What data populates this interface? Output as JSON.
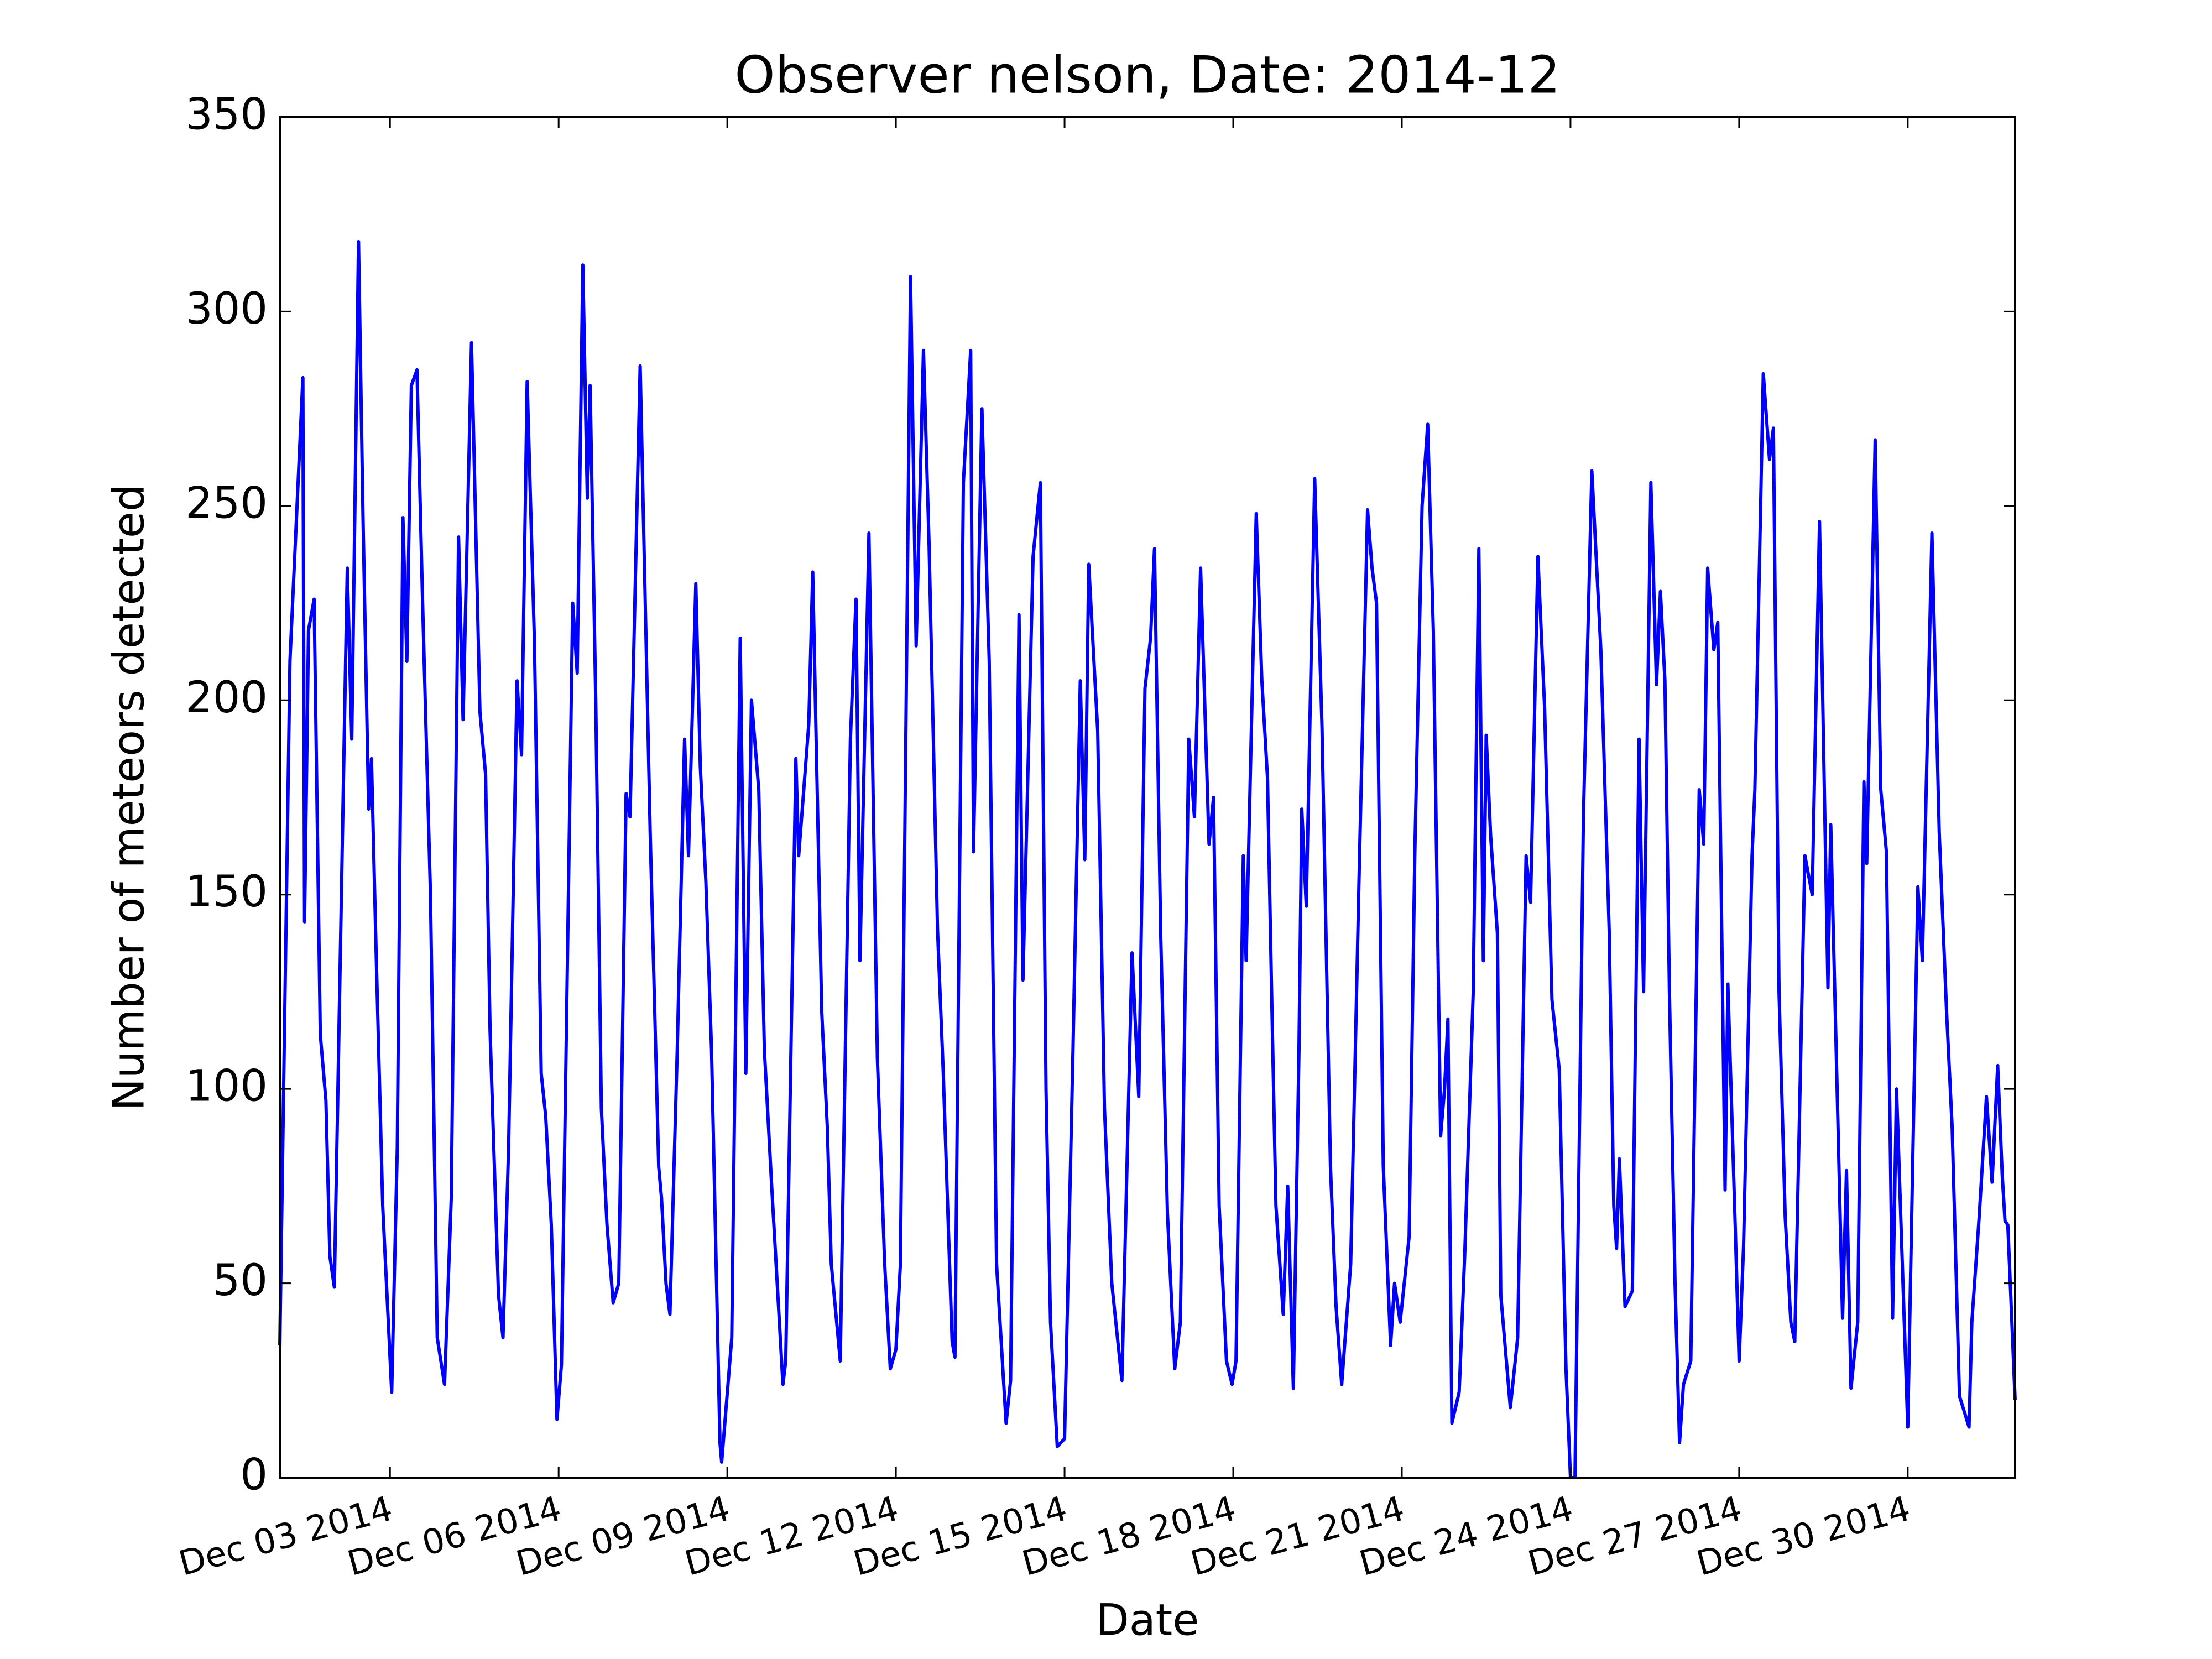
{
  "chart_data": {
    "type": "line",
    "title": "Observer nelson, Date: 2014-12",
    "xlabel": "Date",
    "ylabel": "Number of meteors detected",
    "color": "#0000ff",
    "xlim": [
      1.04,
      31.91
    ],
    "ylim": [
      0,
      350
    ],
    "yticks": [
      0,
      50,
      100,
      150,
      200,
      250,
      300,
      350
    ],
    "xticks": [
      {
        "value": 3,
        "label": "Dec 03 2014"
      },
      {
        "value": 6,
        "label": "Dec 06 2014"
      },
      {
        "value": 9,
        "label": "Dec 09 2014"
      },
      {
        "value": 12,
        "label": "Dec 12 2014"
      },
      {
        "value": 15,
        "label": "Dec 15 2014"
      },
      {
        "value": 18,
        "label": "Dec 18 2014"
      },
      {
        "value": 21,
        "label": "Dec 21 2014"
      },
      {
        "value": 24,
        "label": "Dec 24 2014"
      },
      {
        "value": 27,
        "label": "Dec 27 2014"
      },
      {
        "value": 30,
        "label": "Dec 30 2014"
      }
    ],
    "grid": false,
    "x": [
      1.04,
      1.22,
      1.45,
      1.48,
      1.55,
      1.65,
      1.76,
      1.86,
      1.93,
      2.01,
      2.24,
      2.32,
      2.44,
      2.52,
      2.62,
      2.67,
      2.75,
      2.87,
      3.03,
      3.13,
      3.23,
      3.3,
      3.38,
      3.48,
      3.58,
      3.72,
      3.84,
      3.97,
      4.09,
      4.22,
      4.3,
      4.45,
      4.6,
      4.7,
      4.78,
      4.93,
      5.01,
      5.11,
      5.26,
      5.34,
      5.44,
      5.57,
      5.69,
      5.77,
      5.87,
      5.97,
      6.05,
      6.25,
      6.33,
      6.43,
      6.51,
      6.56,
      6.66,
      6.76,
      6.86,
      6.97,
      7.07,
      7.2,
      7.27,
      7.45,
      7.63,
      7.78,
      7.83,
      7.91,
      7.98,
      8.11,
      8.24,
      8.31,
      8.44,
      8.52,
      8.62,
      8.72,
      8.87,
      8.9,
      9.08,
      9.23,
      9.33,
      9.43,
      9.56,
      9.66,
      9.79,
      9.99,
      10.04,
      10.22,
      10.27,
      10.35,
      10.45,
      10.52,
      10.68,
      10.78,
      10.85,
      11.01,
      11.19,
      11.29,
      11.36,
      11.52,
      11.67,
      11.8,
      11.9,
      12.0,
      12.08,
      12.26,
      12.36,
      12.49,
      12.59,
      12.74,
      12.84,
      13.0,
      13.05,
      13.2,
      13.33,
      13.38,
      13.53,
      13.66,
      13.79,
      13.96,
      14.04,
      14.19,
      14.26,
      14.44,
      14.57,
      14.67,
      14.75,
      14.87,
      15.0,
      15.15,
      15.28,
      15.36,
      15.43,
      15.59,
      15.71,
      15.84,
      16.02,
      16.2,
      16.32,
      16.43,
      16.53,
      16.6,
      16.71,
      16.83,
      16.96,
      17.06,
      17.21,
      17.31,
      17.42,
      17.57,
      17.65,
      17.75,
      17.88,
      17.98,
      18.05,
      18.18,
      18.23,
      18.41,
      18.51,
      18.61,
      18.69,
      18.76,
      18.89,
      18.97,
      19.07,
      19.17,
      19.22,
      19.3,
      19.45,
      19.58,
      19.73,
      19.83,
      19.93,
      20.09,
      20.24,
      20.39,
      20.47,
      20.55,
      20.67,
      20.8,
      20.87,
      20.97,
      21.13,
      21.23,
      21.36,
      21.46,
      21.56,
      21.69,
      21.76,
      21.82,
      21.89,
      22.02,
      22.12,
      22.27,
      22.37,
      22.45,
      22.5,
      22.58,
      22.7,
      22.76,
      22.93,
      23.06,
      23.21,
      23.29,
      23.42,
      23.54,
      23.67,
      23.8,
      23.92,
      24.0,
      24.08,
      24.23,
      24.38,
      24.54,
      24.69,
      24.77,
      24.82,
      24.87,
      24.97,
      25.1,
      25.22,
      25.3,
      25.43,
      25.53,
      25.6,
      25.68,
      25.76,
      25.86,
      25.94,
      26.01,
      26.14,
      26.29,
      26.37,
      26.44,
      26.55,
      26.62,
      26.75,
      26.8,
      26.93,
      27.0,
      27.08,
      27.23,
      27.28,
      27.43,
      27.54,
      27.61,
      27.71,
      27.82,
      27.92,
      27.99,
      28.17,
      28.3,
      28.43,
      28.58,
      28.63,
      28.76,
      28.84,
      28.91,
      28.99,
      29.11,
      29.22,
      29.27,
      29.42,
      29.52,
      29.62,
      29.73,
      29.8,
      30.0,
      30.18,
      30.26,
      30.43,
      30.56,
      30.69,
      30.79,
      30.92,
      31.09,
      31.14,
      31.27,
      31.4,
      31.5,
      31.6,
      31.68,
      31.73,
      31.78,
      31.91
    ],
    "values": [
      34,
      210,
      283,
      143,
      218,
      226,
      114,
      97,
      57,
      49,
      234,
      190,
      318,
      247,
      172,
      185,
      137,
      70,
      22,
      85,
      247,
      210,
      281,
      285,
      225,
      150,
      36,
      24,
      72,
      242,
      195,
      292,
      197,
      181,
      115,
      47,
      36,
      85,
      205,
      186,
      282,
      215,
      104,
      93,
      65,
      15,
      29,
      225,
      207,
      312,
      252,
      281,
      200,
      95,
      65,
      45,
      50,
      176,
      170,
      286,
      165,
      80,
      72,
      50,
      42,
      110,
      190,
      160,
      230,
      183,
      153,
      110,
      9,
      4,
      36,
      216,
      104,
      200,
      177,
      110,
      75,
      24,
      30,
      185,
      160,
      175,
      194,
      233,
      120,
      90,
      55,
      30,
      190,
      226,
      133,
      243,
      108,
      55,
      28,
      33,
      55,
      309,
      214,
      290,
      240,
      141,
      105,
      35,
      31,
      256,
      290,
      161,
      275,
      210,
      55,
      14,
      25,
      222,
      128,
      237,
      256,
      100,
      40,
      8,
      10,
      110,
      205,
      159,
      235,
      192,
      95,
      50,
      25,
      135,
      98,
      203,
      216,
      239,
      140,
      68,
      28,
      40,
      190,
      170,
      234,
      163,
      175,
      70,
      30,
      24,
      30,
      160,
      133,
      248,
      205,
      180,
      120,
      70,
      42,
      75,
      23,
      110,
      172,
      147,
      257,
      193,
      80,
      44,
      24,
      55,
      155,
      249,
      234,
      225,
      80,
      34,
      50,
      40,
      62,
      160,
      250,
      271,
      218,
      88,
      100,
      118,
      14,
      22,
      58,
      125,
      239,
      133,
      191,
      165,
      140,
      47,
      18,
      36,
      160,
      148,
      237,
      198,
      123,
      105,
      28,
      0,
      0,
      170,
      259,
      213,
      140,
      70,
      59,
      82,
      44,
      48,
      190,
      125,
      256,
      204,
      228,
      205,
      125,
      50,
      9,
      24,
      30,
      177,
      163,
      234,
      213,
      220,
      74,
      127,
      65,
      30,
      60,
      160,
      177,
      284,
      262,
      270,
      125,
      67,
      40,
      35,
      160,
      150,
      246,
      126,
      168,
      90,
      41,
      79,
      23,
      40,
      179,
      158,
      267,
      177,
      161,
      41,
      100,
      13,
      152,
      133,
      243,
      166,
      120,
      90,
      21,
      13,
      40,
      67,
      98,
      76,
      106,
      78,
      66,
      65,
      20
    ]
  }
}
